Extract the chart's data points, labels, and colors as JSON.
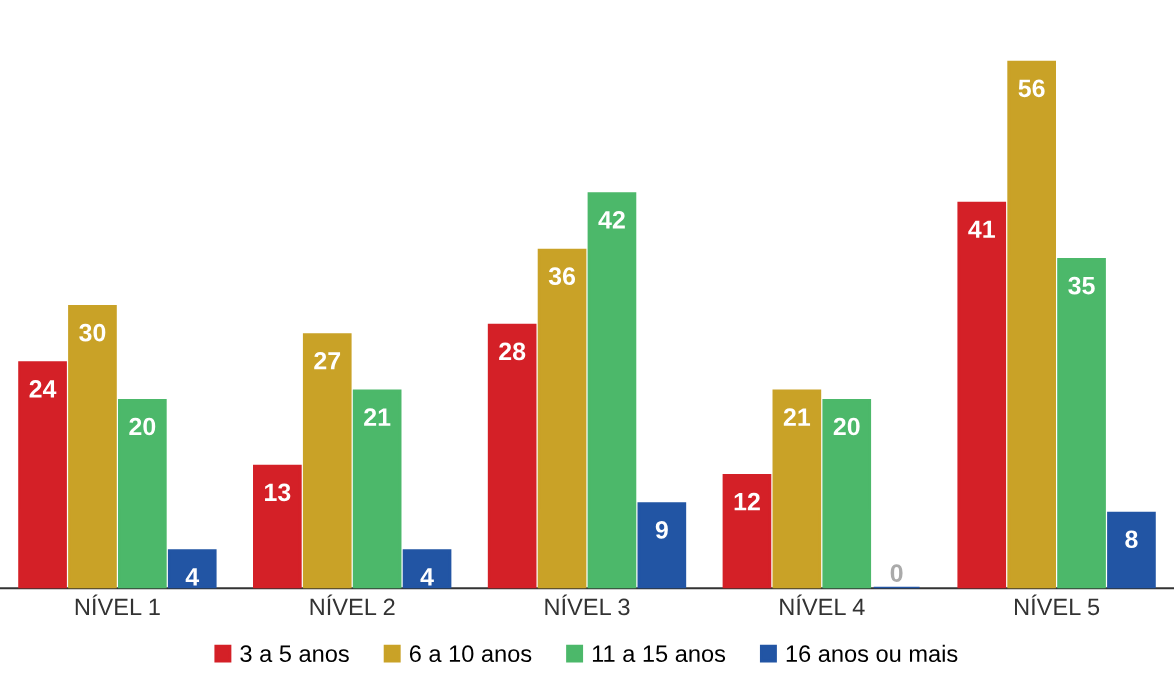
{
  "chart_data": {
    "type": "bar",
    "categories": [
      "NÍVEL 1",
      "NÍVEL 2",
      "NÍVEL 3",
      "NÍVEL 4",
      "NÍVEL 5"
    ],
    "series": [
      {
        "name": "3 a 5 anos",
        "color": "#d42027",
        "values": [
          24,
          13,
          28,
          12,
          41
        ]
      },
      {
        "name": "6 a 10 anos",
        "color": "#c9a227",
        "values": [
          30,
          27,
          36,
          21,
          56
        ]
      },
      {
        "name": "11 a 15 anos",
        "color": "#4cb86a",
        "values": [
          20,
          21,
          42,
          20,
          35
        ]
      },
      {
        "name": "16 anos ou mais",
        "color": "#2255a4",
        "values": [
          4,
          4,
          9,
          0,
          8
        ]
      }
    ],
    "data_labels": true,
    "legend": "bottom",
    "grid": false
  }
}
